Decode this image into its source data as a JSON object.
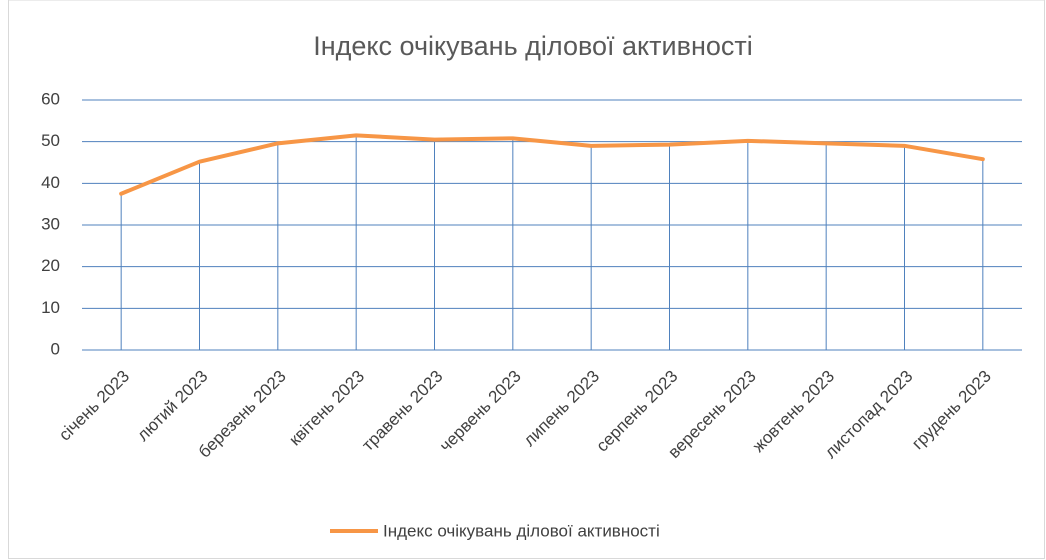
{
  "chart_data": {
    "type": "line",
    "title": "Індекс очікувань ділової активності",
    "categories": [
      "січень 2023",
      "лютий 2023",
      "березень 2023",
      "квітень 2023",
      "травень 2023",
      "червень 2023",
      "липень 2023",
      "серпень 2023",
      "вересень 2023",
      "жовтень 2023",
      "листопад 2023",
      "грудень 2023"
    ],
    "series": [
      {
        "name": "Індекс очікувань ділової активності",
        "color": "#f79646",
        "values": [
          37.5,
          45.2,
          49.6,
          51.5,
          50.5,
          50.8,
          49.0,
          49.3,
          50.2,
          49.6,
          49.0,
          45.8
        ]
      }
    ],
    "ylim": [
      0,
      60
    ],
    "yticks": [
      0,
      10,
      20,
      30,
      40,
      50,
      60
    ],
    "grid": true,
    "grid_color": "#4f81bd",
    "drop_lines": true,
    "legend": "bottom"
  }
}
